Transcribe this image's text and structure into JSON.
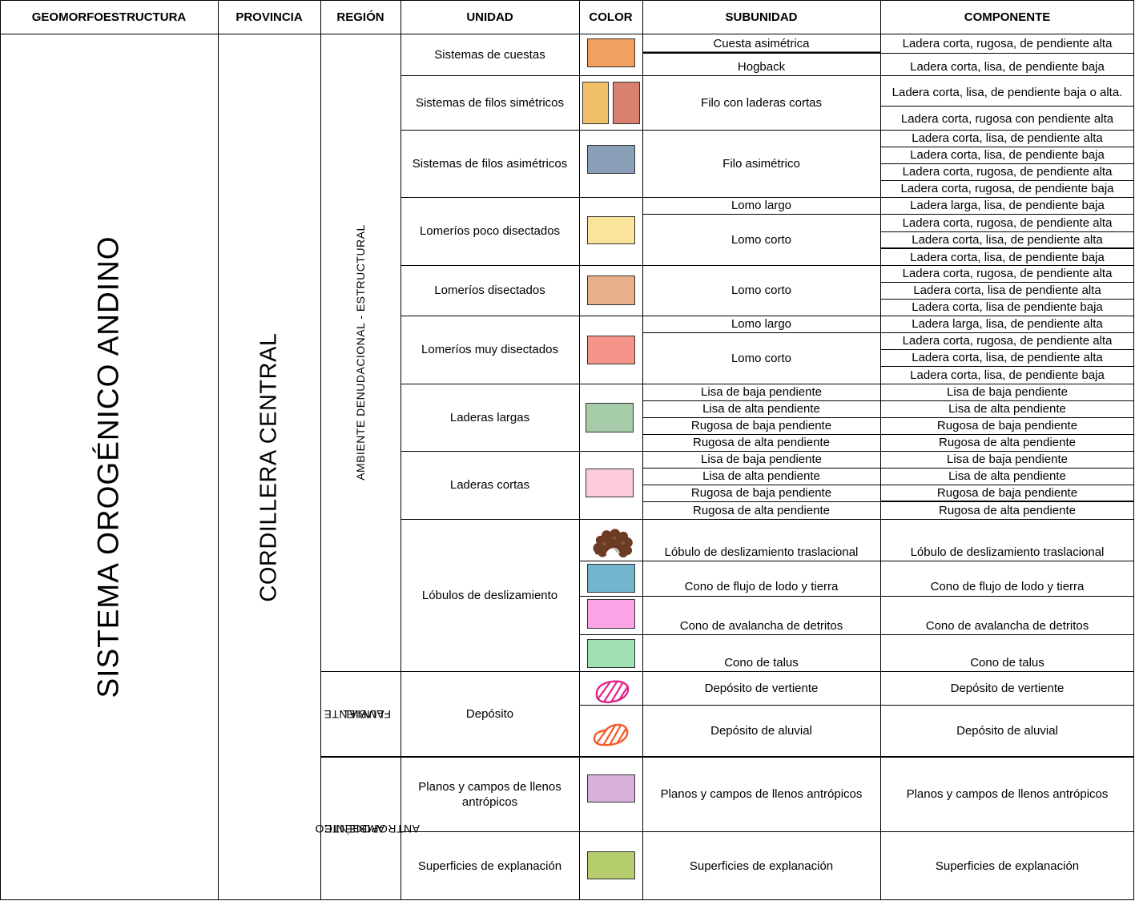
{
  "headers": {
    "geomorfoestructura": "GEOMORFOESTRUCTURA",
    "provincia": "PROVINCIA",
    "region": "REGIÓN",
    "unidad": "UNIDAD",
    "color": "COLOR",
    "subunidad": "SUBUNIDAD",
    "componente": "COMPONENTE"
  },
  "geomorfoestructura": "SISTEMA OROGÉNICO ANDINO",
  "provincia": "CORDILLERA CENTRAL",
  "regiones": {
    "denudacional": "AMBIENTE DENUDACIONAL - ESTRUCTURAL",
    "fluvial_1": "AMBIENTE",
    "fluvial_2": "FLUVIAL",
    "antropogenico_1": "AMBIENTE",
    "antropogenico_2": "ANTROPOGÉNICO"
  },
  "unidades": {
    "u1": "Sistemas de cuestas",
    "u2": "Sistemas de filos simétricos",
    "u3": "Sistemas de filos asimétricos",
    "u4": "Lomeríos poco disectados",
    "u5": "Lomeríos disectados",
    "u6": "Lomeríos muy disectados",
    "u7": "Laderas largas",
    "u8": "Laderas cortas",
    "u9": "Lóbulos de deslizamiento",
    "u10": "Depósito",
    "u11_1": "Planos y campos de llenos",
    "u11_2": "antrópicos",
    "u12": "Superficies de explanación"
  },
  "subunidades": {
    "s1": "Cuesta asimétrica",
    "s2": "Hogback",
    "s3": "Filo con laderas cortas",
    "s4": "Filo asimétrico",
    "s5": "Lomo largo",
    "s6": "Lomo corto",
    "s7": "Lomo corto",
    "s8": "Lomo largo",
    "s9": "Lomo corto",
    "s10": "Lisa de baja pendiente",
    "s11": "Lisa de alta pendiente",
    "s12": "Rugosa de baja pendiente",
    "s13": "Rugosa de alta pendiente",
    "s14": "Lisa de baja pendiente",
    "s15": "Lisa de alta pendiente",
    "s16": "Rugosa de baja pendiente",
    "s17": "Rugosa de alta pendiente",
    "s18": "Lóbulo de deslizamiento traslacional",
    "s19": "Cono de flujo de lodo y tierra",
    "s20": "Cono de avalancha de detritos",
    "s21": "Cono de talus",
    "s22": "Depósito de vertiente",
    "s23": "Depósito de aluvial",
    "s24": "Planos y campos de llenos antrópicos",
    "s25": "Superficies de explanación"
  },
  "componentes": {
    "c1": "Ladera corta, rugosa, de pendiente alta",
    "c2": "Ladera corta, lisa, de pendiente baja",
    "c3": "Ladera corta, lisa, de pendiente baja o alta.",
    "c4": "Ladera corta, rugosa con pendiente alta",
    "c5": "Ladera corta, lisa, de pendiente alta",
    "c6": "Ladera corta, lisa, de pendiente baja",
    "c7": "Ladera corta, rugosa, de pendiente alta",
    "c8": "Ladera corta, rugosa, de pendiente baja",
    "c9": "Ladera larga, lisa, de pendiente baja",
    "c10": "Ladera corta, rugosa, de pendiente alta",
    "c11": "Ladera corta, lisa, de pendiente alta",
    "c12": "Ladera corta, lisa, de pendiente baja",
    "c13": "Ladera corta, rugosa, de pendiente alta",
    "c14": "Ladera corta, lisa de pendiente alta",
    "c15": "Ladera corta, lisa de pendiente baja",
    "c16": "Ladera larga, lisa, de pendiente alta",
    "c17": "Ladera corta, rugosa, de pendiente alta",
    "c18": "Ladera corta, lisa, de pendiente alta",
    "c19": "Ladera corta, lisa, de pendiente baja",
    "c20": "Lisa de baja pendiente",
    "c21": "Lisa de alta pendiente",
    "c22": "Rugosa de baja pendiente",
    "c23": "Rugosa de alta pendiente",
    "c24": "Lisa de baja pendiente",
    "c25": "Lisa de alta pendiente",
    "c26": "Rugosa de baja pendiente",
    "c27": "Rugosa de alta pendiente",
    "c28": "Lóbulo de deslizamiento traslacional",
    "c29": "Cono de flujo de lodo y tierra",
    "c30": "Cono de avalancha de detritos",
    "c31": "Cono de talus",
    "c32": "Depósito de vertiente",
    "c33": "Depósito de aluvial",
    "c34": "Planos y campos de llenos antrópicos",
    "c35": "Superficies de explanación"
  },
  "swatch_colors": {
    "cuestas": "#f0a060",
    "filos_simetricos_a": "#f0c068",
    "filos_simetricos_b": "#d98070",
    "filos_asimetricos": "#8aa0b8",
    "lomerios_poco": "#fae39a",
    "lomerios_disectados": "#e8b088",
    "lomerios_muy": "#f5958a",
    "laderas_largas": "#a6cba8",
    "laderas_cortas": "#fbcbd9",
    "flujo_lodo": "#72b5cc",
    "avalancha": "#fba5e8",
    "talus": "#9ee0b2",
    "llenos": "#d6b0da",
    "explanacion": "#b4cc6c",
    "lobulo_icon": "#6b3b24",
    "deposito_vertiente_icon": "#e0218a",
    "deposito_aluvial_icon": "#f05a28"
  },
  "icons": {
    "lobulo": "landslide-lobe-icon",
    "vertiente": "hatched-blob-magenta-icon",
    "aluvial": "hatched-blob-orange-icon"
  }
}
